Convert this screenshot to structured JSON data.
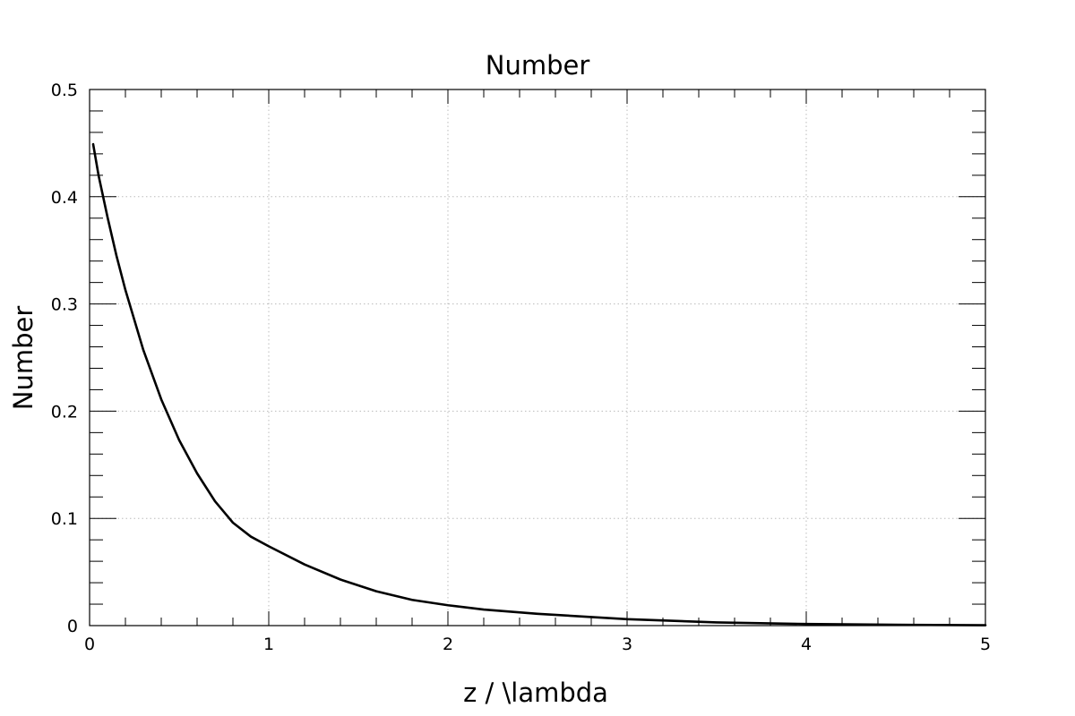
{
  "chart_data": {
    "type": "line",
    "title": "Number",
    "xlabel": "z / \\lambda",
    "ylabel": "Number",
    "xlim": [
      0,
      5
    ],
    "ylim": [
      0,
      0.5
    ],
    "grid": true,
    "x_ticks": [
      "0",
      "1",
      "2",
      "3",
      "4",
      "5"
    ],
    "y_ticks": [
      "0",
      "0.1",
      "0.2",
      "0.3",
      "0.4",
      "0.5"
    ],
    "series": [
      {
        "x": [
          0.02,
          0.05,
          0.1,
          0.15,
          0.2,
          0.3,
          0.4,
          0.5,
          0.6,
          0.7,
          0.8,
          0.9,
          1.0,
          1.2,
          1.4,
          1.6,
          1.8,
          2.0,
          2.2,
          2.5,
          3.0,
          3.5,
          4.0,
          4.5,
          5.0
        ],
        "y": [
          0.449,
          0.42,
          0.381,
          0.345,
          0.313,
          0.257,
          0.211,
          0.173,
          0.142,
          0.116,
          0.096,
          0.083,
          0.074,
          0.057,
          0.043,
          0.032,
          0.024,
          0.019,
          0.015,
          0.011,
          0.006,
          0.003,
          0.0015,
          0.0008,
          0.0004
        ],
        "color": "#000000"
      }
    ]
  }
}
